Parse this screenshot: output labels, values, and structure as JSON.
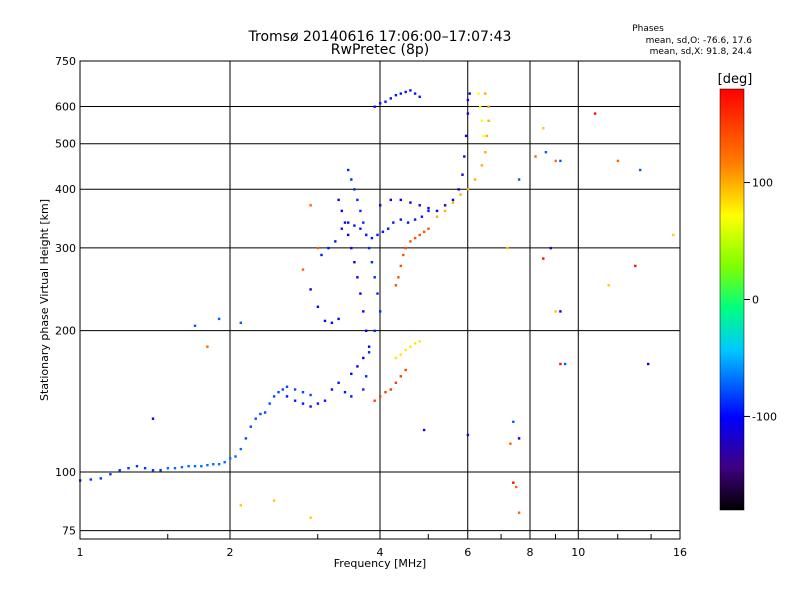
{
  "chart_data": {
    "type": "scatter",
    "title": "Tromsø 20140616 17:06:00–17:07:43",
    "subtitle": "RwPretec (8p)",
    "xlabel": "Frequency [MHz]",
    "ylabel": "Stationary phase Virtual Height [km]",
    "xscale": "log",
    "yscale": "log",
    "xlim": [
      1,
      16
    ],
    "ylim": [
      72,
      750
    ],
    "xticks": [
      1,
      2,
      4,
      6,
      8,
      10,
      16
    ],
    "xtick_labels": [
      "1",
      "2",
      "4",
      "6",
      "8",
      "10",
      "16"
    ],
    "yticks": [
      75,
      100,
      200,
      300,
      400,
      500,
      600,
      750
    ],
    "ytick_labels": [
      "75",
      "100",
      "200",
      "300",
      "400",
      "500",
      "600",
      "750"
    ],
    "grid": true,
    "stats": {
      "heading": "Phases",
      "line_o": "mean, sd,O: -76.6, 17.6",
      "line_x": "mean, sd,X:  91.8, 24.4"
    },
    "colorbar": {
      "label": "[deg]",
      "range": [
        -180,
        180
      ],
      "ticks": [
        100,
        0,
        -100
      ],
      "tick_labels": [
        "100",
        "0",
        "-100"
      ]
    },
    "series": [
      {
        "phase_deg": -85,
        "points": [
          [
            1.0,
            96
          ],
          [
            1.05,
            96.5
          ],
          [
            1.1,
            97
          ],
          [
            1.15,
            99
          ],
          [
            1.2,
            101
          ],
          [
            1.25,
            102
          ],
          [
            1.3,
            103
          ],
          [
            1.35,
            102
          ],
          [
            1.4,
            101
          ],
          [
            1.45,
            101
          ]
        ]
      },
      {
        "phase_deg": -70,
        "points": [
          [
            1.5,
            102
          ],
          [
            1.55,
            102
          ],
          [
            1.6,
            102.5
          ],
          [
            1.65,
            103
          ],
          [
            1.7,
            103
          ],
          [
            1.75,
            103
          ],
          [
            1.8,
            103.5
          ],
          [
            1.85,
            104
          ],
          [
            1.9,
            104
          ],
          [
            1.95,
            105
          ],
          [
            2.0,
            107
          ],
          [
            2.05,
            108
          ],
          [
            2.1,
            112
          ]
        ]
      },
      {
        "phase_deg": -80,
        "points": [
          [
            2.15,
            118
          ],
          [
            2.2,
            125
          ],
          [
            2.25,
            130
          ],
          [
            2.3,
            133
          ],
          [
            2.35,
            134
          ],
          [
            2.4,
            140
          ],
          [
            2.45,
            145
          ],
          [
            2.5,
            148
          ],
          [
            2.55,
            150
          ],
          [
            2.6,
            152
          ],
          [
            2.7,
            150
          ],
          [
            2.8,
            148
          ],
          [
            2.9,
            146
          ]
        ]
      },
      {
        "phase_deg": -95,
        "points": [
          [
            2.6,
            145
          ],
          [
            2.7,
            142
          ],
          [
            2.8,
            140
          ],
          [
            2.9,
            138
          ],
          [
            3.0,
            140
          ],
          [
            3.1,
            142
          ],
          [
            3.2,
            150
          ],
          [
            3.3,
            155
          ],
          [
            3.4,
            148
          ],
          [
            3.5,
            145
          ]
        ]
      },
      {
        "phase_deg": -100,
        "points": [
          [
            2.9,
            245
          ],
          [
            3.0,
            225
          ],
          [
            3.1,
            210
          ],
          [
            3.2,
            208
          ],
          [
            3.3,
            212
          ]
        ]
      },
      {
        "phase_deg": -95,
        "points": [
          [
            3.05,
            290
          ],
          [
            3.15,
            300
          ],
          [
            3.25,
            310
          ],
          [
            3.35,
            330
          ],
          [
            3.45,
            340
          ],
          [
            3.55,
            335
          ],
          [
            3.65,
            330
          ],
          [
            3.75,
            320
          ],
          [
            3.85,
            315
          ],
          [
            3.95,
            320
          ],
          [
            4.05,
            325
          ],
          [
            4.15,
            330
          ],
          [
            4.25,
            340
          ],
          [
            4.4,
            345
          ],
          [
            4.55,
            340
          ],
          [
            4.7,
            345
          ],
          [
            4.85,
            350
          ],
          [
            5.0,
            360
          ]
        ]
      },
      {
        "phase_deg": -105,
        "points": [
          [
            3.3,
            380
          ],
          [
            3.35,
            360
          ],
          [
            3.4,
            340
          ],
          [
            3.45,
            320
          ],
          [
            3.5,
            300
          ],
          [
            3.55,
            280
          ],
          [
            3.6,
            260
          ],
          [
            3.65,
            240
          ],
          [
            3.7,
            220
          ],
          [
            3.75,
            200
          ],
          [
            3.8,
            185
          ],
          [
            3.7,
            175
          ],
          [
            3.6,
            168
          ],
          [
            3.5,
            162
          ]
        ]
      },
      {
        "phase_deg": -90,
        "points": [
          [
            3.45,
            440
          ],
          [
            3.5,
            420
          ],
          [
            3.55,
            400
          ],
          [
            3.6,
            380
          ],
          [
            3.65,
            360
          ],
          [
            3.7,
            340
          ],
          [
            3.75,
            320
          ],
          [
            3.8,
            300
          ],
          [
            3.85,
            280
          ],
          [
            3.9,
            260
          ],
          [
            3.95,
            240
          ],
          [
            4.0,
            220
          ],
          [
            3.9,
            200
          ],
          [
            3.8,
            180
          ],
          [
            3.75,
            160
          ],
          [
            3.7,
            150
          ]
        ]
      },
      {
        "phase_deg": -110,
        "points": [
          [
            4.0,
            370
          ],
          [
            4.2,
            380
          ],
          [
            4.4,
            380
          ],
          [
            4.6,
            375
          ],
          [
            4.8,
            370
          ],
          [
            5.0,
            365
          ],
          [
            5.2,
            360
          ],
          [
            5.4,
            370
          ],
          [
            5.6,
            380
          ],
          [
            5.75,
            400
          ],
          [
            5.85,
            430
          ],
          [
            5.9,
            470
          ],
          [
            5.95,
            520
          ],
          [
            6.0,
            580
          ],
          [
            6.05,
            640
          ],
          [
            6.0,
            620
          ]
        ]
      },
      {
        "phase_deg": -95,
        "points": [
          [
            3.9,
            600
          ],
          [
            4.0,
            610
          ],
          [
            4.1,
            615
          ],
          [
            4.2,
            625
          ],
          [
            4.3,
            635
          ],
          [
            4.4,
            640
          ],
          [
            4.5,
            645
          ],
          [
            4.6,
            650
          ],
          [
            4.7,
            640
          ],
          [
            4.8,
            630
          ]
        ]
      },
      {
        "phase_deg": 140,
        "points": [
          [
            4.3,
            250
          ],
          [
            4.35,
            260
          ],
          [
            4.4,
            275
          ],
          [
            4.45,
            290
          ],
          [
            4.5,
            300
          ],
          [
            4.6,
            310
          ],
          [
            4.7,
            315
          ],
          [
            4.8,
            320
          ],
          [
            4.9,
            325
          ],
          [
            5.0,
            330
          ]
        ]
      },
      {
        "phase_deg": 150,
        "points": [
          [
            3.9,
            142
          ],
          [
            4.0,
            145
          ],
          [
            4.1,
            148
          ],
          [
            4.2,
            150
          ],
          [
            4.3,
            155
          ],
          [
            4.4,
            160
          ],
          [
            4.5,
            165
          ]
        ]
      },
      {
        "phase_deg": 80,
        "points": [
          [
            4.3,
            175
          ],
          [
            4.4,
            178
          ],
          [
            4.5,
            182
          ],
          [
            4.6,
            185
          ],
          [
            4.7,
            188
          ],
          [
            4.8,
            190
          ]
        ]
      },
      {
        "phase_deg": 100,
        "points": [
          [
            5.2,
            350
          ],
          [
            5.4,
            360
          ],
          [
            5.6,
            375
          ],
          [
            5.8,
            390
          ],
          [
            6.0,
            400
          ],
          [
            6.2,
            420
          ],
          [
            6.4,
            450
          ],
          [
            6.5,
            480
          ],
          [
            6.55,
            520
          ],
          [
            6.6,
            560
          ],
          [
            6.6,
            600
          ],
          [
            6.5,
            640
          ]
        ]
      },
      {
        "phase_deg": 70,
        "points": [
          [
            6.3,
            640
          ],
          [
            6.35,
            600
          ],
          [
            6.4,
            560
          ],
          [
            6.45,
            520
          ]
        ]
      },
      {
        "phase_deg": 130,
        "points": [
          [
            2.9,
            370
          ],
          [
            3.0,
            300
          ],
          [
            2.8,
            270
          ],
          [
            1.8,
            185
          ],
          [
            7.5,
            93
          ],
          [
            7.6,
            82
          ],
          [
            7.3,
            115
          ],
          [
            8.2,
            470
          ],
          [
            9.0,
            460
          ],
          [
            12.0,
            460
          ]
        ]
      },
      {
        "phase_deg": 90,
        "points": [
          [
            2.1,
            85
          ],
          [
            2.45,
            87
          ],
          [
            2.9,
            80
          ],
          [
            7.2,
            300
          ],
          [
            8.5,
            540
          ],
          [
            9.0,
            220
          ],
          [
            11.5,
            250
          ],
          [
            15.5,
            320
          ]
        ]
      },
      {
        "phase_deg": -75,
        "points": [
          [
            1.7,
            205
          ],
          [
            1.9,
            212
          ],
          [
            2.1,
            208
          ],
          [
            7.6,
            420
          ],
          [
            8.6,
            480
          ],
          [
            9.2,
            460
          ],
          [
            7.4,
            128
          ],
          [
            9.4,
            170
          ],
          [
            13.3,
            440
          ]
        ]
      },
      {
        "phase_deg": -110,
        "points": [
          [
            1.4,
            130
          ],
          [
            4.9,
            123
          ],
          [
            6.0,
            120
          ],
          [
            7.6,
            118
          ],
          [
            8.8,
            300
          ],
          [
            9.2,
            220
          ],
          [
            13.8,
            170
          ]
        ]
      },
      {
        "phase_deg": 175,
        "points": [
          [
            9.2,
            170
          ],
          [
            8.5,
            285
          ],
          [
            10.8,
            580
          ],
          [
            13.0,
            275
          ],
          [
            7.4,
            95
          ]
        ]
      }
    ]
  }
}
